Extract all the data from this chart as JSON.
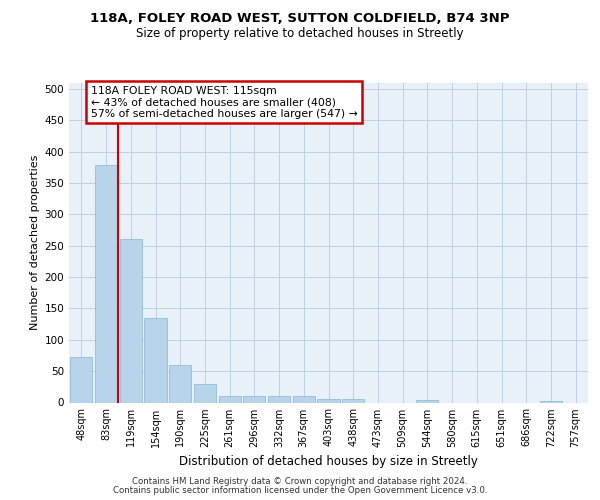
{
  "title_line1": "118A, FOLEY ROAD WEST, SUTTON COLDFIELD, B74 3NP",
  "title_line2": "Size of property relative to detached houses in Streetly",
  "xlabel": "Distribution of detached houses by size in Streetly",
  "ylabel": "Number of detached properties",
  "categories": [
    "48sqm",
    "83sqm",
    "119sqm",
    "154sqm",
    "190sqm",
    "225sqm",
    "261sqm",
    "296sqm",
    "332sqm",
    "367sqm",
    "403sqm",
    "438sqm",
    "473sqm",
    "509sqm",
    "544sqm",
    "580sqm",
    "615sqm",
    "651sqm",
    "686sqm",
    "722sqm",
    "757sqm"
  ],
  "values": [
    72,
    378,
    260,
    135,
    60,
    30,
    10,
    10,
    10,
    10,
    5,
    5,
    0,
    0,
    4,
    0,
    0,
    0,
    0,
    3,
    0
  ],
  "bar_color": "#b8d4ea",
  "bar_edge_color": "#8ab4d4",
  "vline_color": "#cc0000",
  "annotation_line1": "118A FOLEY ROAD WEST: 115sqm",
  "annotation_line2": "← 43% of detached houses are smaller (408)",
  "annotation_line3": "57% of semi-detached houses are larger (547) →",
  "annotation_box_color": "#cc0000",
  "ylim": [
    0,
    510
  ],
  "yticks": [
    0,
    50,
    100,
    150,
    200,
    250,
    300,
    350,
    400,
    450,
    500
  ],
  "grid_color": "#c0d0e0",
  "bg_color": "#e8f0f8",
  "footer_line1": "Contains HM Land Registry data © Crown copyright and database right 2024.",
  "footer_line2": "Contains public sector information licensed under the Open Government Licence v3.0."
}
